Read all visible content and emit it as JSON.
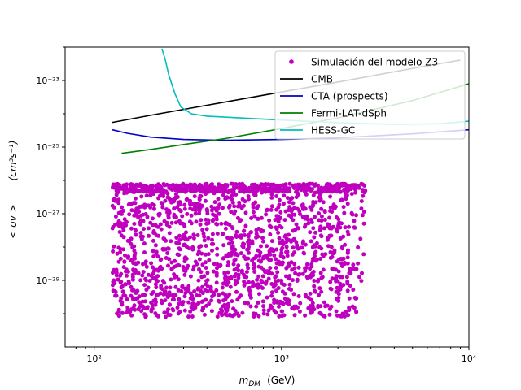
{
  "chart_data": {
    "type": "scatter",
    "title": "",
    "xlabel_main": "m",
    "xlabel_sub": "DM",
    "xlabel_unit": "(GeV)",
    "ylabel": "< σv >",
    "ylabel_unit": "(cm³s⁻¹)",
    "x_scale": "log",
    "y_scale": "log",
    "xlim": [
      70,
      10000
    ],
    "ylim": [
      1e-31,
      1e-22
    ],
    "x_ticks": [
      {
        "value": 100,
        "label": "10²"
      },
      {
        "value": 1000,
        "label": "10³"
      },
      {
        "value": 10000,
        "label": "10⁴"
      }
    ],
    "y_ticks": [
      {
        "value": 1e-29,
        "label": "10⁻²⁹"
      },
      {
        "value": 1e-27,
        "label": "10⁻²⁷"
      },
      {
        "value": 1e-25,
        "label": "10⁻²⁵"
      },
      {
        "value": 1e-23,
        "label": "10⁻²³"
      }
    ],
    "legend_position": "top-right",
    "grid": false,
    "series": [
      {
        "name": "Simulación del modelo Z3",
        "kind": "scatter",
        "color": "#bf00bf",
        "x_range": [
          125,
          2800
        ],
        "y_log10_range": [
          -30.1,
          -26.1
        ],
        "y_log10_upper": -26.1,
        "points_estimated": 2000
      },
      {
        "name": "CMB",
        "kind": "line",
        "color": "#000000",
        "x": [
          125,
          200,
          400,
          1000,
          2000,
          5000,
          9000
        ],
        "y": [
          5.5e-25,
          9e-25,
          1.8e-24,
          4.5e-24,
          9e-24,
          2.3e-23,
          4.1e-23
        ]
      },
      {
        "name": "CTA (prospects)",
        "kind": "line",
        "color": "#0000cc",
        "x": [
          125,
          150,
          200,
          300,
          500,
          1000,
          2000,
          5000,
          10000
        ],
        "y": [
          3.3e-25,
          2.6e-25,
          2e-25,
          1.7e-25,
          1.6e-25,
          1.7e-25,
          1.9e-25,
          2.5e-25,
          3.3e-25
        ]
      },
      {
        "name": "Fermi-LAT-dSph",
        "kind": "line",
        "color": "#008000",
        "x": [
          140,
          200,
          300,
          500,
          1000,
          2000,
          5000,
          10000
        ],
        "y": [
          6.5e-26,
          8.5e-26,
          1.2e-25,
          1.8e-25,
          3.6e-25,
          7.5e-25,
          2.5e-24,
          8e-24
        ]
      },
      {
        "name": "HESS-GC",
        "kind": "line",
        "color": "#00bfbf",
        "x": [
          230,
          240,
          250,
          270,
          290,
          330,
          400,
          600,
          1000,
          2000,
          4000,
          7000,
          10000
        ],
        "y": [
          9e-23,
          4e-23,
          1.5e-23,
          4e-24,
          1.6e-24,
          1e-24,
          8.5e-25,
          7.5e-25,
          6.5e-25,
          5.4e-25,
          4.8e-25,
          5e-25,
          6e-25
        ]
      }
    ]
  }
}
